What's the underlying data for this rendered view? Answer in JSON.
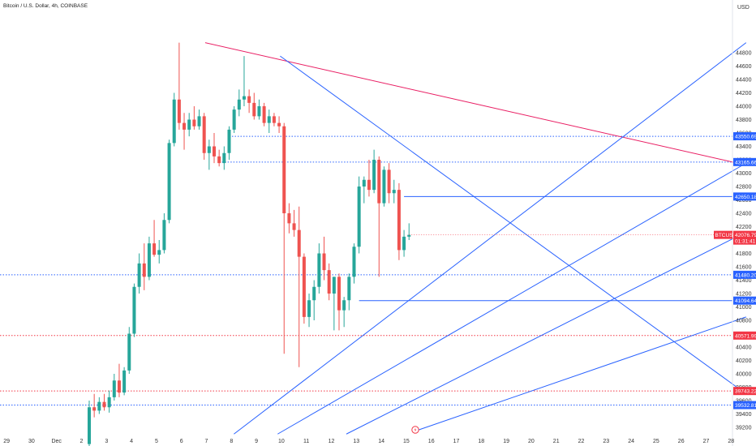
{
  "header": {
    "title": "Bitcoin / U.S. Dollar, 4h, COINBASE"
  },
  "currency_label": "USD",
  "colors": {
    "up": "#26a69a",
    "down": "#ef5350",
    "blue": "#2962ff",
    "red": "#f23645",
    "pink": "#e91e63"
  },
  "chart_data": {
    "type": "candlestick",
    "title": "Bitcoin / U.S. Dollar, 4h, COINBASE",
    "ylabel": "USD",
    "ylim": [
      39100,
      45000
    ],
    "yticks": [
      39200,
      39400,
      39600,
      39800,
      40000,
      40200,
      40400,
      40600,
      40800,
      41000,
      41200,
      41400,
      41600,
      41800,
      42000,
      42200,
      42400,
      42600,
      42800,
      43000,
      43200,
      43400,
      43600,
      43800,
      44000,
      44200,
      44400,
      44600,
      44800
    ],
    "xlabels": [
      {
        "label": "29",
        "d": -3
      },
      {
        "label": "30",
        "d": -2
      },
      {
        "label": "Dec",
        "d": -1
      },
      {
        "label": "2",
        "d": 0
      },
      {
        "label": "3",
        "d": 1
      },
      {
        "label": "4",
        "d": 2
      },
      {
        "label": "5",
        "d": 3
      },
      {
        "label": "6",
        "d": 4
      },
      {
        "label": "7",
        "d": 5
      },
      {
        "label": "8",
        "d": 6
      },
      {
        "label": "9",
        "d": 7
      },
      {
        "label": "10",
        "d": 8
      },
      {
        "label": "11",
        "d": 9
      },
      {
        "label": "12",
        "d": 10
      },
      {
        "label": "13",
        "d": 11
      },
      {
        "label": "14",
        "d": 12
      },
      {
        "label": "15",
        "d": 13
      },
      {
        "label": "16",
        "d": 14
      },
      {
        "label": "17",
        "d": 15
      },
      {
        "label": "18",
        "d": 16
      },
      {
        "label": "19",
        "d": 17
      },
      {
        "label": "20",
        "d": 18
      },
      {
        "label": "21",
        "d": 19
      },
      {
        "label": "22",
        "d": 20
      },
      {
        "label": "23",
        "d": 21
      },
      {
        "label": "24",
        "d": 22
      },
      {
        "label": "25",
        "d": 23
      },
      {
        "label": "26",
        "d": 24
      },
      {
        "label": "27",
        "d": 25
      },
      {
        "label": "28",
        "d": 26
      }
    ],
    "candles": [
      {
        "o": 38950,
        "h": 39600,
        "l": 38900,
        "c": 39500
      },
      {
        "o": 39500,
        "h": 39700,
        "l": 39350,
        "c": 39450
      },
      {
        "o": 39450,
        "h": 39650,
        "l": 39400,
        "c": 39580
      },
      {
        "o": 39580,
        "h": 39700,
        "l": 39450,
        "c": 39500
      },
      {
        "o": 39500,
        "h": 39750,
        "l": 39420,
        "c": 39650
      },
      {
        "o": 39650,
        "h": 40000,
        "l": 39600,
        "c": 39900
      },
      {
        "o": 39900,
        "h": 40150,
        "l": 39650,
        "c": 39720
      },
      {
        "o": 39720,
        "h": 40100,
        "l": 39680,
        "c": 40050
      },
      {
        "o": 40050,
        "h": 40700,
        "l": 40000,
        "c": 40600
      },
      {
        "o": 40600,
        "h": 41350,
        "l": 40550,
        "c": 41300
      },
      {
        "o": 41300,
        "h": 41800,
        "l": 41200,
        "c": 41650
      },
      {
        "o": 41650,
        "h": 41950,
        "l": 41250,
        "c": 41450
      },
      {
        "o": 41450,
        "h": 42050,
        "l": 41400,
        "c": 41950
      },
      {
        "o": 41950,
        "h": 42300,
        "l": 41750,
        "c": 41780
      },
      {
        "o": 41780,
        "h": 42000,
        "l": 41650,
        "c": 41850
      },
      {
        "o": 41850,
        "h": 42400,
        "l": 41800,
        "c": 42300
      },
      {
        "o": 42300,
        "h": 43500,
        "l": 42250,
        "c": 43450
      },
      {
        "o": 43450,
        "h": 44200,
        "l": 43400,
        "c": 44100
      },
      {
        "o": 44100,
        "h": 44950,
        "l": 43650,
        "c": 43750
      },
      {
        "o": 43750,
        "h": 43900,
        "l": 43350,
        "c": 43650
      },
      {
        "o": 43650,
        "h": 43900,
        "l": 43550,
        "c": 43800
      },
      {
        "o": 43800,
        "h": 44000,
        "l": 43650,
        "c": 43700
      },
      {
        "o": 43700,
        "h": 43950,
        "l": 43650,
        "c": 43850
      },
      {
        "o": 43850,
        "h": 43900,
        "l": 43200,
        "c": 43300
      },
      {
        "o": 43300,
        "h": 43500,
        "l": 43050,
        "c": 43400
      },
      {
        "o": 43400,
        "h": 43600,
        "l": 43150,
        "c": 43250
      },
      {
        "o": 43250,
        "h": 43350,
        "l": 43100,
        "c": 43150
      },
      {
        "o": 43150,
        "h": 43400,
        "l": 43050,
        "c": 43300
      },
      {
        "o": 43300,
        "h": 43700,
        "l": 43200,
        "c": 43650
      },
      {
        "o": 43650,
        "h": 44000,
        "l": 43600,
        "c": 43950
      },
      {
        "o": 43950,
        "h": 44250,
        "l": 43850,
        "c": 44100
      },
      {
        "o": 44100,
        "h": 44750,
        "l": 44000,
        "c": 44150
      },
      {
        "o": 44150,
        "h": 44250,
        "l": 43900,
        "c": 44050
      },
      {
        "o": 44050,
        "h": 44200,
        "l": 43800,
        "c": 43850
      },
      {
        "o": 43850,
        "h": 44100,
        "l": 43800,
        "c": 44000
      },
      {
        "o": 44000,
        "h": 44050,
        "l": 43700,
        "c": 43750
      },
      {
        "o": 43750,
        "h": 43950,
        "l": 43600,
        "c": 43850
      },
      {
        "o": 43850,
        "h": 43900,
        "l": 43700,
        "c": 43750
      },
      {
        "o": 43750,
        "h": 43850,
        "l": 43600,
        "c": 43700
      },
      {
        "o": 43700,
        "h": 43750,
        "l": 40300,
        "c": 42400
      },
      {
        "o": 42400,
        "h": 42550,
        "l": 42100,
        "c": 42250
      },
      {
        "o": 42250,
        "h": 42450,
        "l": 42050,
        "c": 42150
      },
      {
        "o": 42150,
        "h": 42500,
        "l": 40100,
        "c": 41750
      },
      {
        "o": 41750,
        "h": 41800,
        "l": 40750,
        "c": 40850
      },
      {
        "o": 40850,
        "h": 41200,
        "l": 40700,
        "c": 41100
      },
      {
        "o": 41100,
        "h": 41400,
        "l": 40800,
        "c": 41300
      },
      {
        "o": 41300,
        "h": 41950,
        "l": 41200,
        "c": 41800
      },
      {
        "o": 41800,
        "h": 42050,
        "l": 41400,
        "c": 41550
      },
      {
        "o": 41550,
        "h": 41650,
        "l": 41100,
        "c": 41200
      },
      {
        "o": 41200,
        "h": 41450,
        "l": 40650,
        "c": 41450
      },
      {
        "o": 41450,
        "h": 41500,
        "l": 40650,
        "c": 40950
      },
      {
        "o": 40950,
        "h": 41150,
        "l": 40700,
        "c": 41100
      },
      {
        "o": 41100,
        "h": 41500,
        "l": 40950,
        "c": 41450
      },
      {
        "o": 41450,
        "h": 41950,
        "l": 41350,
        "c": 41900
      },
      {
        "o": 41900,
        "h": 42950,
        "l": 41800,
        "c": 42800
      },
      {
        "o": 42800,
        "h": 42950,
        "l": 42550,
        "c": 42900
      },
      {
        "o": 42900,
        "h": 43200,
        "l": 42650,
        "c": 42750
      },
      {
        "o": 42750,
        "h": 43350,
        "l": 42700,
        "c": 43200
      },
      {
        "o": 43200,
        "h": 43250,
        "l": 41450,
        "c": 42550
      },
      {
        "o": 42550,
        "h": 43100,
        "l": 42500,
        "c": 43050
      },
      {
        "o": 43050,
        "h": 43150,
        "l": 42550,
        "c": 42700
      },
      {
        "o": 42700,
        "h": 42900,
        "l": 42550,
        "c": 42750
      },
      {
        "o": 42750,
        "h": 42850,
        "l": 41700,
        "c": 41850
      },
      {
        "o": 41850,
        "h": 42150,
        "l": 41750,
        "c": 42050
      },
      {
        "o": 42050,
        "h": 42250,
        "l": 42000,
        "c": 42077
      }
    ],
    "horizontal_levels": [
      {
        "price": 43550.69,
        "label": "43550.69",
        "color": "#2962ff",
        "style": "dotted",
        "from_index": 28
      },
      {
        "price": 43165.66,
        "label": "43165.66",
        "color": "#2962ff",
        "style": "dotted",
        "from_index": 26
      },
      {
        "price": 42650.18,
        "label": "42650.18",
        "color": "#2962ff",
        "style": "solid",
        "from_index": 63
      },
      {
        "price": 41480.2,
        "label": "41480.20",
        "color": "#2962ff",
        "style": "dotted",
        "from_index": -1
      },
      {
        "price": 41094.64,
        "label": "41094.64",
        "color": "#2962ff",
        "style": "solid",
        "from_index": 54
      },
      {
        "price": 40571.99,
        "label": "40571.99",
        "color": "#f23645",
        "style": "dotted",
        "from_index": -1
      },
      {
        "price": 39743.22,
        "label": "39743.22",
        "color": "#f23645",
        "style": "dotted",
        "from_index": -1
      },
      {
        "price": 39532.81,
        "label": "39532.81",
        "color": "#2962ff",
        "style": "dotted",
        "from_index": -1
      }
    ],
    "trendlines": [
      {
        "color": "#e91e63",
        "x1": 4.95,
        "p1": 44950,
        "x2": 26.6,
        "p2": 43120
      },
      {
        "color": "#2962ff",
        "x1": 7.95,
        "p1": 44750,
        "x2": 26.6,
        "p2": 39700
      },
      {
        "color": "#2962ff",
        "x1": 6.1,
        "p1": 39100,
        "x2": 26.6,
        "p2": 44950
      },
      {
        "color": "#2962ff",
        "x1": 7.85,
        "p1": 39100,
        "x2": 26.6,
        "p2": 43150
      },
      {
        "color": "#2962ff",
        "x1": 10.6,
        "p1": 39100,
        "x2": 26.6,
        "p2": 42120
      },
      {
        "color": "#2962ff",
        "x1": 13.4,
        "p1": 39150,
        "x2": 26.6,
        "p2": 40850
      }
    ],
    "last_price": {
      "symbol": "BTCUSD",
      "price": "42076.79",
      "countdown": "01:31:41"
    }
  }
}
